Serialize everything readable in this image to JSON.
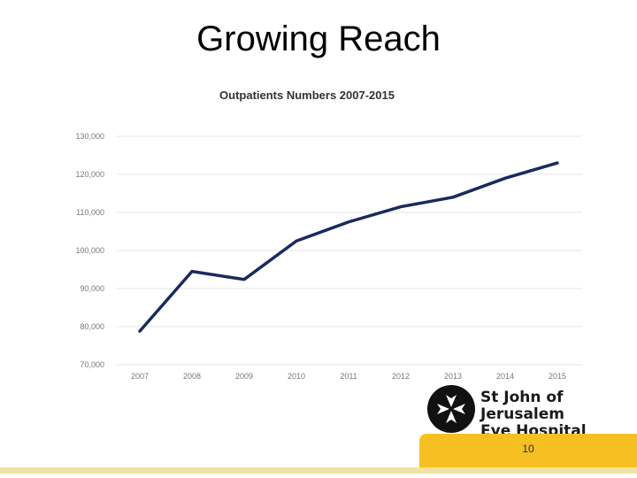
{
  "slide": {
    "title": "Growing Reach",
    "page_number": "10"
  },
  "logo": {
    "line1": "St John of Jerusalem",
    "line2": "Eye Hospital Group",
    "icon": "maltese-cross-icon"
  },
  "colors": {
    "series": "#1a2a5e",
    "accent_yellow": "#f7c022",
    "footer_band": "#f1e3a2"
  },
  "chart_data": {
    "type": "line",
    "title": "Outpatients Numbers 2007-2015",
    "xlabel": "",
    "ylabel": "",
    "categories": [
      "2007",
      "2008",
      "2009",
      "2010",
      "2011",
      "2012",
      "2013",
      "2014",
      "2015"
    ],
    "series": [
      {
        "values": [
          78800,
          94500,
          92400,
          102500,
          107500,
          111500,
          114000,
          119000,
          123000
        ]
      }
    ],
    "ylim": [
      70000,
      130000
    ],
    "yticks": [
      {
        "value": 70000,
        "label": "70,000"
      },
      {
        "value": 80000,
        "label": "80,000"
      },
      {
        "value": 90000,
        "label": "90,000"
      },
      {
        "value": 100000,
        "label": "100,000"
      },
      {
        "value": 110000,
        "label": "110,000"
      },
      {
        "value": 120000,
        "label": "120,000"
      },
      {
        "value": 130000,
        "label": "130,000"
      }
    ],
    "grid": true,
    "legend": "none"
  }
}
